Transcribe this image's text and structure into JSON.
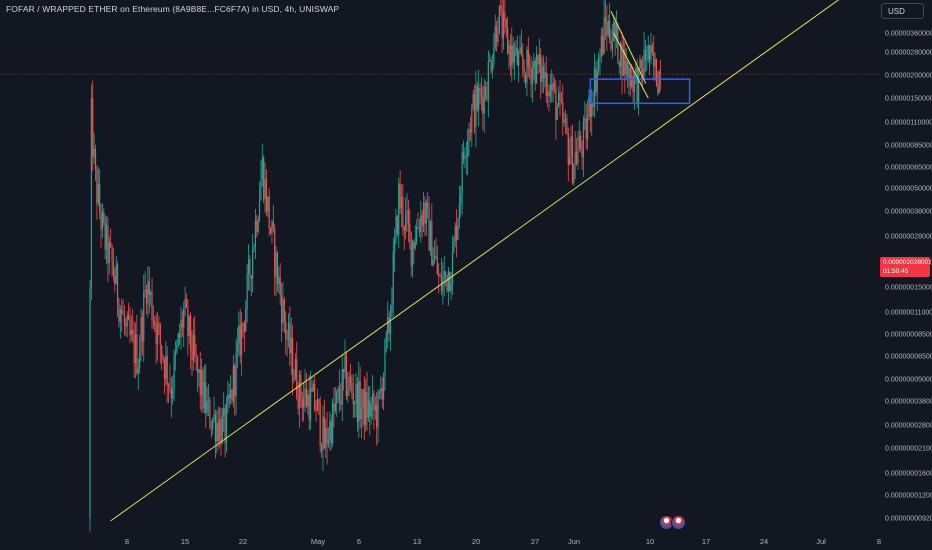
{
  "title": "FOFAR / WRAPPED ETHER on Ethereum (8A9B8E...FC6F7A) in USD, 4h, UNISWAP",
  "currency_button": "USD",
  "price_badge": {
    "price": "0.000002028001",
    "countdown": "01:50:45",
    "color": "#f23645"
  },
  "colors": {
    "background": "#131722",
    "up_candle": "#26a69a",
    "down_candle": "#ef5350",
    "trendline": "#e5e04f",
    "box": "#2962ff",
    "price_line": "#f23645"
  },
  "chart_data": {
    "type": "candlestick",
    "title": "FOFAR / WRAPPED ETHER on Ethereum (8A9B8E...FC6F7A) in USD, 4h, UNISWAP",
    "y_scale": "log",
    "y_ticks": [
      "0.000003600000",
      "0.000002800000",
      "0.000002000000",
      "0.000001500000",
      "0.000001100000",
      "0.000000850000",
      "0.000000650000",
      "0.000000500000",
      "0.000000380000",
      "0.000000280000",
      "0.000000200000",
      "0.000000150000",
      "0.000000110000",
      "0.000000085000",
      "0.000000065000",
      "0.000000050000",
      "0.000000038000",
      "0.000000028000",
      "0.000000021000",
      "0.000000016000",
      "0.000000012000",
      "0.000000009200"
    ],
    "x_ticks": [
      "8",
      "15",
      "22",
      "May",
      "6",
      "13",
      "20",
      "27",
      "Jun",
      "10",
      "17",
      "24",
      "Jul",
      "8"
    ],
    "last_price": 2.028001e-06,
    "anchors": [
      {
        "d": 0,
        "p": 9.2e-09
      },
      {
        "d": 0.3,
        "p": 1.2e-06
      },
      {
        "d": 0.8,
        "p": 5.5e-07
      },
      {
        "d": 1.8,
        "p": 2.8e-07
      },
      {
        "d": 3,
        "p": 1.8e-07
      },
      {
        "d": 4.5,
        "p": 8.5e-08
      },
      {
        "d": 6,
        "p": 6.5e-08
      },
      {
        "d": 7,
        "p": 1.6e-07
      },
      {
        "d": 8.5,
        "p": 8e-08
      },
      {
        "d": 10,
        "p": 4.5e-08
      },
      {
        "d": 11.5,
        "p": 1.1e-07
      },
      {
        "d": 13,
        "p": 5.5e-08
      },
      {
        "d": 14.5,
        "p": 3.2e-08
      },
      {
        "d": 16.5,
        "p": 2.6e-08
      },
      {
        "d": 19,
        "p": 1.2e-07
      },
      {
        "d": 21,
        "p": 6.5e-07
      },
      {
        "d": 22,
        "p": 3e-07
      },
      {
        "d": 24,
        "p": 8e-08
      },
      {
        "d": 25.5,
        "p": 4.2e-08
      },
      {
        "d": 27.5,
        "p": 3.6e-08
      },
      {
        "d": 28.5,
        "p": 2.2e-08
      },
      {
        "d": 31,
        "p": 5e-08
      },
      {
        "d": 33,
        "p": 3.5e-08
      },
      {
        "d": 35,
        "p": 3.3e-08
      },
      {
        "d": 36.3,
        "p": 9e-08
      },
      {
        "d": 37.5,
        "p": 4.5e-07
      },
      {
        "d": 39,
        "p": 2.5e-07
      },
      {
        "d": 40.5,
        "p": 4e-07
      },
      {
        "d": 42.5,
        "p": 1.5e-07
      },
      {
        "d": 44,
        "p": 2e-07
      },
      {
        "d": 45.5,
        "p": 9e-07
      },
      {
        "d": 46.5,
        "p": 1.3e-06
      },
      {
        "d": 48,
        "p": 1.7e-06
      },
      {
        "d": 49.5,
        "p": 4.5e-06
      },
      {
        "d": 51,
        "p": 2.8e-06
      },
      {
        "d": 52.5,
        "p": 2.2e-06
      },
      {
        "d": 54,
        "p": 2.3e-06
      },
      {
        "d": 55.5,
        "p": 1.9e-06
      },
      {
        "d": 57,
        "p": 1.2e-06
      },
      {
        "d": 58.5,
        "p": 7e-07
      },
      {
        "d": 60,
        "p": 9e-07
      },
      {
        "d": 60.6,
        "p": 1.4e-06
      },
      {
        "d": 61.5,
        "p": 2.2e-06
      },
      {
        "d": 62.5,
        "p": 4e-06
      },
      {
        "d": 63.5,
        "p": 3.5e-06
      },
      {
        "d": 65,
        "p": 2.2e-06
      },
      {
        "d": 66.5,
        "p": 1.8e-06
      },
      {
        "d": 67.5,
        "p": 2.8e-06
      },
      {
        "d": 68.5,
        "p": 2.1e-06
      },
      {
        "d": 69,
        "p": 2.028e-06
      }
    ],
    "annotations": {
      "resistance_level": 5.8e-06,
      "rising_trendline": [
        {
          "d": 2.5,
          "p": 8.9e-09
        },
        {
          "d": 91,
          "p": 5.8e-06
        }
      ],
      "blue_box": {
        "d_start": 60.5,
        "d_end": 72.5,
        "p_low": 1.4e-06,
        "p_high": 1.9e-06
      },
      "falling_wedge": [
        [
          {
            "d": 63,
            "p": 4.8e-06
          },
          {
            "d": 67.2,
            "p": 1.8e-06
          }
        ],
        [
          {
            "d": 63.3,
            "p": 3.6e-06
          },
          {
            "d": 67.5,
            "p": 1.5e-06
          }
        ]
      ]
    }
  }
}
